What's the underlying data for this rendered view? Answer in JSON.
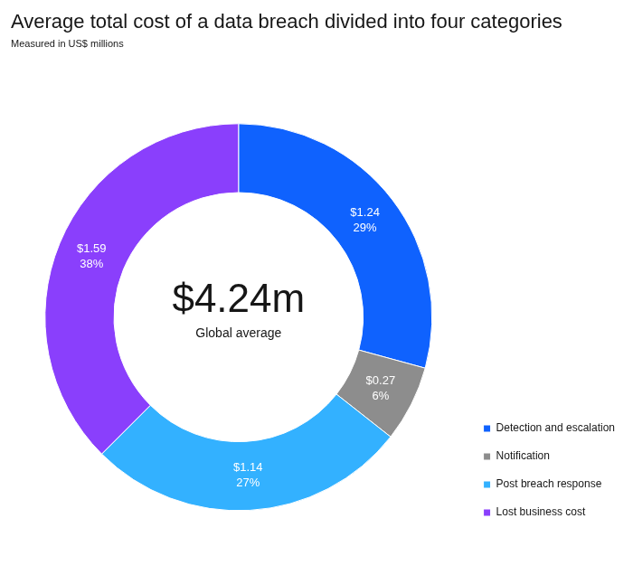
{
  "chart_data": {
    "type": "doughnut",
    "title": "Average total cost of a data breach divided into four categories",
    "subtitle": "Measured in US$ millions",
    "categories": [
      "Detection and escalation",
      "Notification",
      "Post breach response",
      "Lost business cost"
    ],
    "values": [
      1.24,
      0.27,
      1.14,
      1.59
    ],
    "value_labels": [
      [
        "$1.24",
        "29%"
      ],
      [
        "$0.27",
        "6%"
      ],
      [
        "$1.14",
        "27%"
      ],
      [
        "$1.59",
        "38%"
      ]
    ],
    "colors": [
      "#0f62fe",
      "#8d8d8d",
      "#33b1ff",
      "#8a3ffc"
    ],
    "annotations": [
      "$4.24m",
      "Global average"
    ],
    "data_labels": true,
    "legend": "right"
  }
}
